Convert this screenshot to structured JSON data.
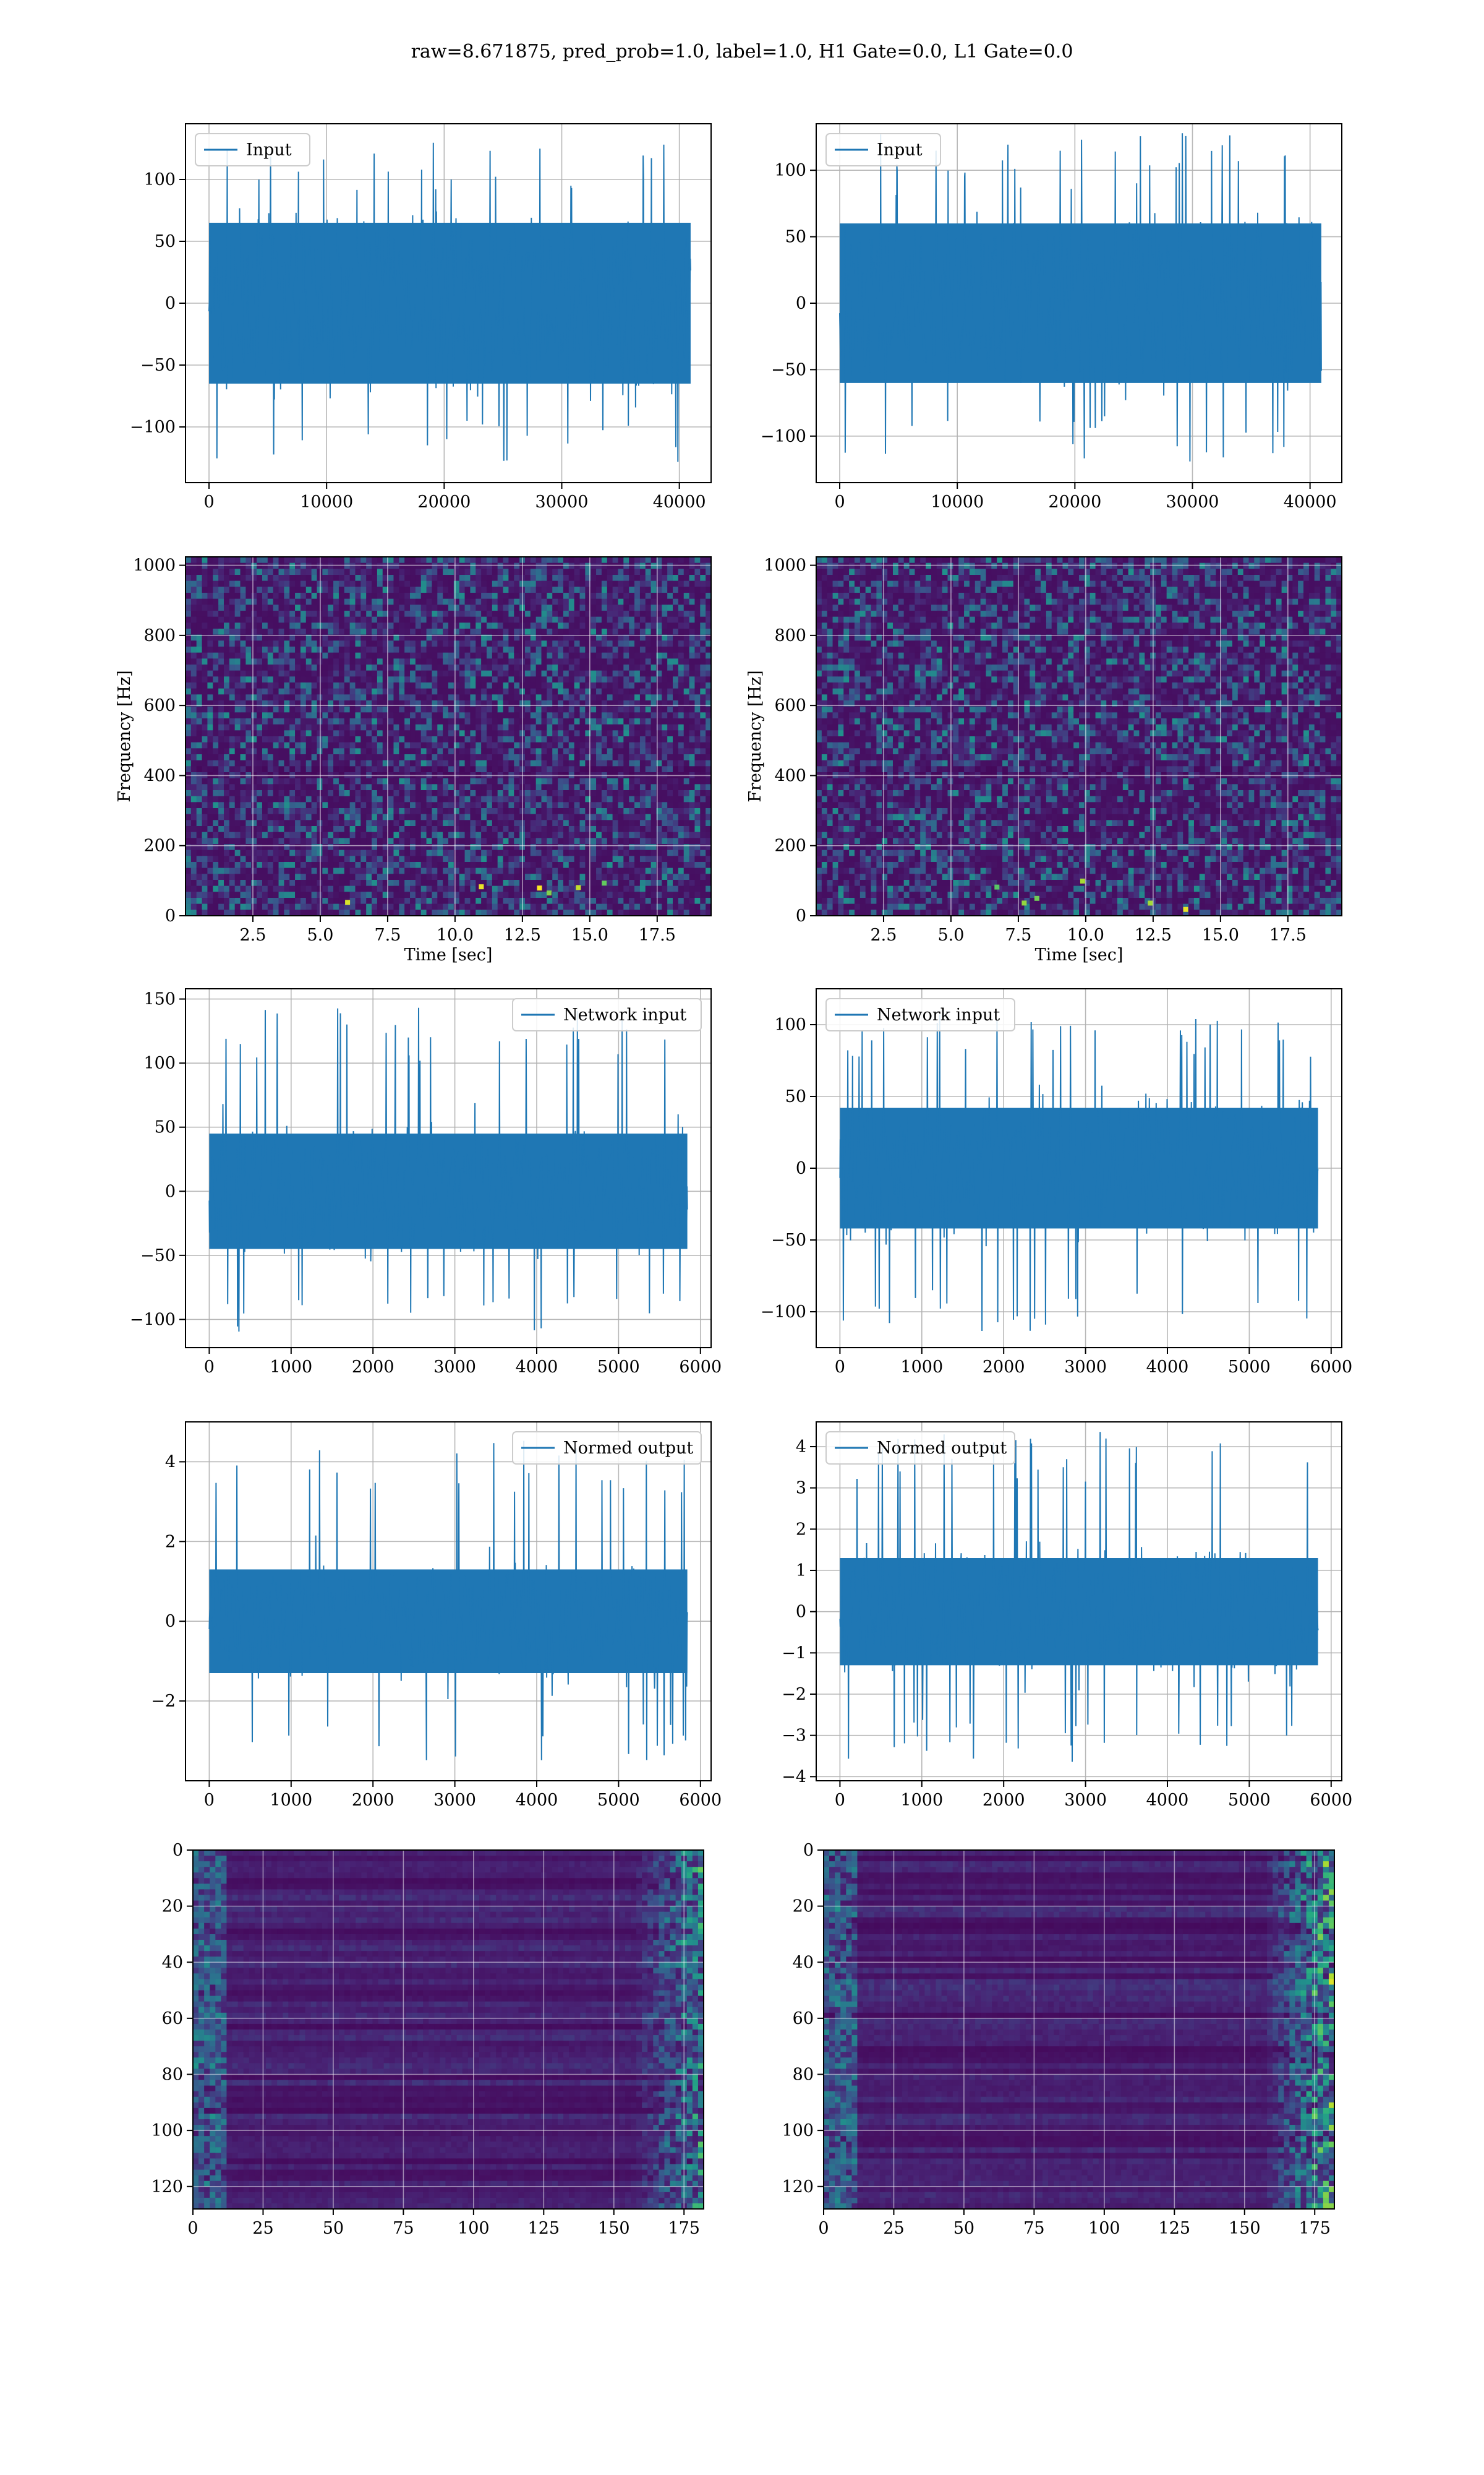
{
  "figure": {
    "title": "raw=8.671875, pred_prob=1.0, label=1.0, H1 Gate=0.0, L1 Gate=0.0"
  },
  "colors": {
    "line": "#1f77b4",
    "grid": "#b0b0b0",
    "viridis_dark": "#440154",
    "viridis_mid": "#21918c",
    "viridis_bright": "#fde725"
  },
  "chart_data": [
    {
      "id": "input-h1",
      "type": "line",
      "title": "",
      "xlabel": "",
      "ylabel": "",
      "legend": "top-left",
      "grid": true,
      "xlim": [
        -2000,
        42700
      ],
      "ylim": [
        -145,
        145
      ],
      "xticks": [
        0,
        10000,
        20000,
        30000,
        40000
      ],
      "xtick_labels": [
        "0",
        "10000",
        "20000",
        "30000",
        "40000"
      ],
      "yticks": [
        -100,
        -50,
        0,
        50,
        100
      ],
      "ytick_labels": [
        "−100",
        "−50",
        "0",
        "50",
        "100"
      ],
      "series": [
        {
          "name": "Input",
          "x_range": [
            0,
            40960
          ],
          "band": [
            -65,
            65
          ],
          "peak_max": 130,
          "peak_min": -130,
          "kind": "noise"
        }
      ]
    },
    {
      "id": "input-l1",
      "type": "line",
      "title": "",
      "xlabel": "",
      "ylabel": "",
      "legend": "top-left",
      "grid": true,
      "xlim": [
        -2000,
        42700
      ],
      "ylim": [
        -135,
        135
      ],
      "xticks": [
        0,
        10000,
        20000,
        30000,
        40000
      ],
      "xtick_labels": [
        "0",
        "10000",
        "20000",
        "30000",
        "40000"
      ],
      "yticks": [
        -100,
        -50,
        0,
        50,
        100
      ],
      "ytick_labels": [
        "−100",
        "−50",
        "0",
        "50",
        "100"
      ],
      "series": [
        {
          "name": "Input",
          "x_range": [
            0,
            40960
          ],
          "band": [
            -60,
            60
          ],
          "peak_max": 128,
          "peak_min": -120,
          "kind": "noise"
        }
      ]
    },
    {
      "id": "spectrogram-h1",
      "type": "heatmap",
      "title": "",
      "xlabel": "Time [sec]",
      "ylabel": "Frequency [Hz]",
      "grid": true,
      "xlim": [
        0,
        19.5
      ],
      "ylim": [
        0,
        1024
      ],
      "xticks": [
        2.5,
        5.0,
        7.5,
        10.0,
        12.5,
        15.0,
        17.5
      ],
      "xtick_labels": [
        "2.5",
        "5.0",
        "7.5",
        "10.0",
        "12.5",
        "15.0",
        "17.5"
      ],
      "yticks": [
        0,
        200,
        400,
        600,
        800,
        1000
      ],
      "ytick_labels": [
        "0",
        "200",
        "400",
        "600",
        "800",
        "1000"
      ]
    },
    {
      "id": "spectrogram-l1",
      "type": "heatmap",
      "title": "",
      "xlabel": "Time [sec]",
      "ylabel": "Frequency [Hz]",
      "grid": true,
      "xlim": [
        0,
        19.5
      ],
      "ylim": [
        0,
        1024
      ],
      "xticks": [
        2.5,
        5.0,
        7.5,
        10.0,
        12.5,
        15.0,
        17.5
      ],
      "xtick_labels": [
        "2.5",
        "5.0",
        "7.5",
        "10.0",
        "12.5",
        "15.0",
        "17.5"
      ],
      "yticks": [
        0,
        200,
        400,
        600,
        800,
        1000
      ],
      "ytick_labels": [
        "0",
        "200",
        "400",
        "600",
        "800",
        "1000"
      ]
    },
    {
      "id": "network-input-h1",
      "type": "line",
      "title": "",
      "xlabel": "",
      "ylabel": "",
      "legend": "top-right",
      "grid": true,
      "xlim": [
        -290,
        6130
      ],
      "ylim": [
        -122,
        158
      ],
      "xticks": [
        0,
        1000,
        2000,
        3000,
        4000,
        5000,
        6000
      ],
      "xtick_labels": [
        "0",
        "1000",
        "2000",
        "3000",
        "4000",
        "5000",
        "6000"
      ],
      "yticks": [
        -100,
        -50,
        0,
        50,
        100,
        150
      ],
      "ytick_labels": [
        "−100",
        "−50",
        "0",
        "50",
        "100",
        "150"
      ],
      "series": [
        {
          "name": "Network input",
          "x_range": [
            0,
            5840
          ],
          "band": [
            -45,
            45
          ],
          "peak_max": 145,
          "peak_min": -110,
          "kind": "noise"
        }
      ]
    },
    {
      "id": "network-input-l1",
      "type": "line",
      "title": "",
      "xlabel": "",
      "ylabel": "",
      "legend": "top-left",
      "grid": true,
      "xlim": [
        -290,
        6130
      ],
      "ylim": [
        -125,
        125
      ],
      "xticks": [
        0,
        1000,
        2000,
        3000,
        4000,
        5000,
        6000
      ],
      "xtick_labels": [
        "0",
        "1000",
        "2000",
        "3000",
        "4000",
        "5000",
        "6000"
      ],
      "yticks": [
        -100,
        -50,
        0,
        50,
        100
      ],
      "ytick_labels": [
        "−100",
        "−50",
        "0",
        "50",
        "100"
      ],
      "series": [
        {
          "name": "Network input",
          "x_range": [
            0,
            5840
          ],
          "band": [
            -42,
            42
          ],
          "peak_max": 108,
          "peak_min": -115,
          "kind": "noise"
        }
      ]
    },
    {
      "id": "normed-output-h1",
      "type": "line",
      "title": "",
      "xlabel": "",
      "ylabel": "",
      "legend": "top-right",
      "grid": true,
      "xlim": [
        -290,
        6130
      ],
      "ylim": [
        -4.0,
        5.0
      ],
      "xticks": [
        0,
        1000,
        2000,
        3000,
        4000,
        5000,
        6000
      ],
      "xtick_labels": [
        "0",
        "1000",
        "2000",
        "3000",
        "4000",
        "5000",
        "6000"
      ],
      "yticks": [
        -2,
        0,
        2,
        4
      ],
      "ytick_labels": [
        "−2",
        "0",
        "2",
        "4"
      ],
      "series": [
        {
          "name": "Normed output",
          "x_range": [
            0,
            5840
          ],
          "band": [
            -1.3,
            1.3
          ],
          "peak_max": 4.6,
          "peak_min": -3.5,
          "kind": "noise"
        }
      ]
    },
    {
      "id": "normed-output-l1",
      "type": "line",
      "title": "",
      "xlabel": "",
      "ylabel": "",
      "legend": "top-left",
      "grid": true,
      "xlim": [
        -290,
        6130
      ],
      "ylim": [
        -4.1,
        4.6
      ],
      "xticks": [
        0,
        1000,
        2000,
        3000,
        4000,
        5000,
        6000
      ],
      "xtick_labels": [
        "0",
        "1000",
        "2000",
        "3000",
        "4000",
        "5000",
        "6000"
      ],
      "yticks": [
        -4,
        -3,
        -2,
        -1,
        0,
        1,
        2,
        3,
        4
      ],
      "ytick_labels": [
        "−4",
        "−3",
        "−2",
        "−1",
        "0",
        "1",
        "2",
        "3",
        "4"
      ],
      "series": [
        {
          "name": "Normed output",
          "x_range": [
            0,
            5840
          ],
          "band": [
            -1.3,
            1.3
          ],
          "peak_max": 4.4,
          "peak_min": -3.7,
          "kind": "noise"
        }
      ]
    },
    {
      "id": "feature-map-h1",
      "type": "heatmap",
      "title": "",
      "xlabel": "",
      "ylabel": "",
      "grid": true,
      "xlim": [
        0,
        182
      ],
      "ylim": [
        128,
        0
      ],
      "xticks": [
        0,
        25,
        50,
        75,
        100,
        125,
        150,
        175
      ],
      "xtick_labels": [
        "0",
        "25",
        "50",
        "75",
        "100",
        "125",
        "150",
        "175"
      ],
      "yticks": [
        0,
        20,
        40,
        60,
        80,
        100,
        120
      ],
      "ytick_labels": [
        "0",
        "20",
        "40",
        "60",
        "80",
        "100",
        "120"
      ]
    },
    {
      "id": "feature-map-l1",
      "type": "heatmap",
      "title": "",
      "xlabel": "",
      "ylabel": "",
      "grid": true,
      "xlim": [
        0,
        182
      ],
      "ylim": [
        128,
        0
      ],
      "xticks": [
        0,
        25,
        50,
        75,
        100,
        125,
        150,
        175
      ],
      "xtick_labels": [
        "0",
        "25",
        "50",
        "75",
        "100",
        "125",
        "150",
        "175"
      ],
      "yticks": [
        0,
        20,
        40,
        60,
        80,
        100,
        120
      ],
      "ytick_labels": [
        "0",
        "20",
        "40",
        "60",
        "80",
        "100",
        "120"
      ]
    }
  ]
}
